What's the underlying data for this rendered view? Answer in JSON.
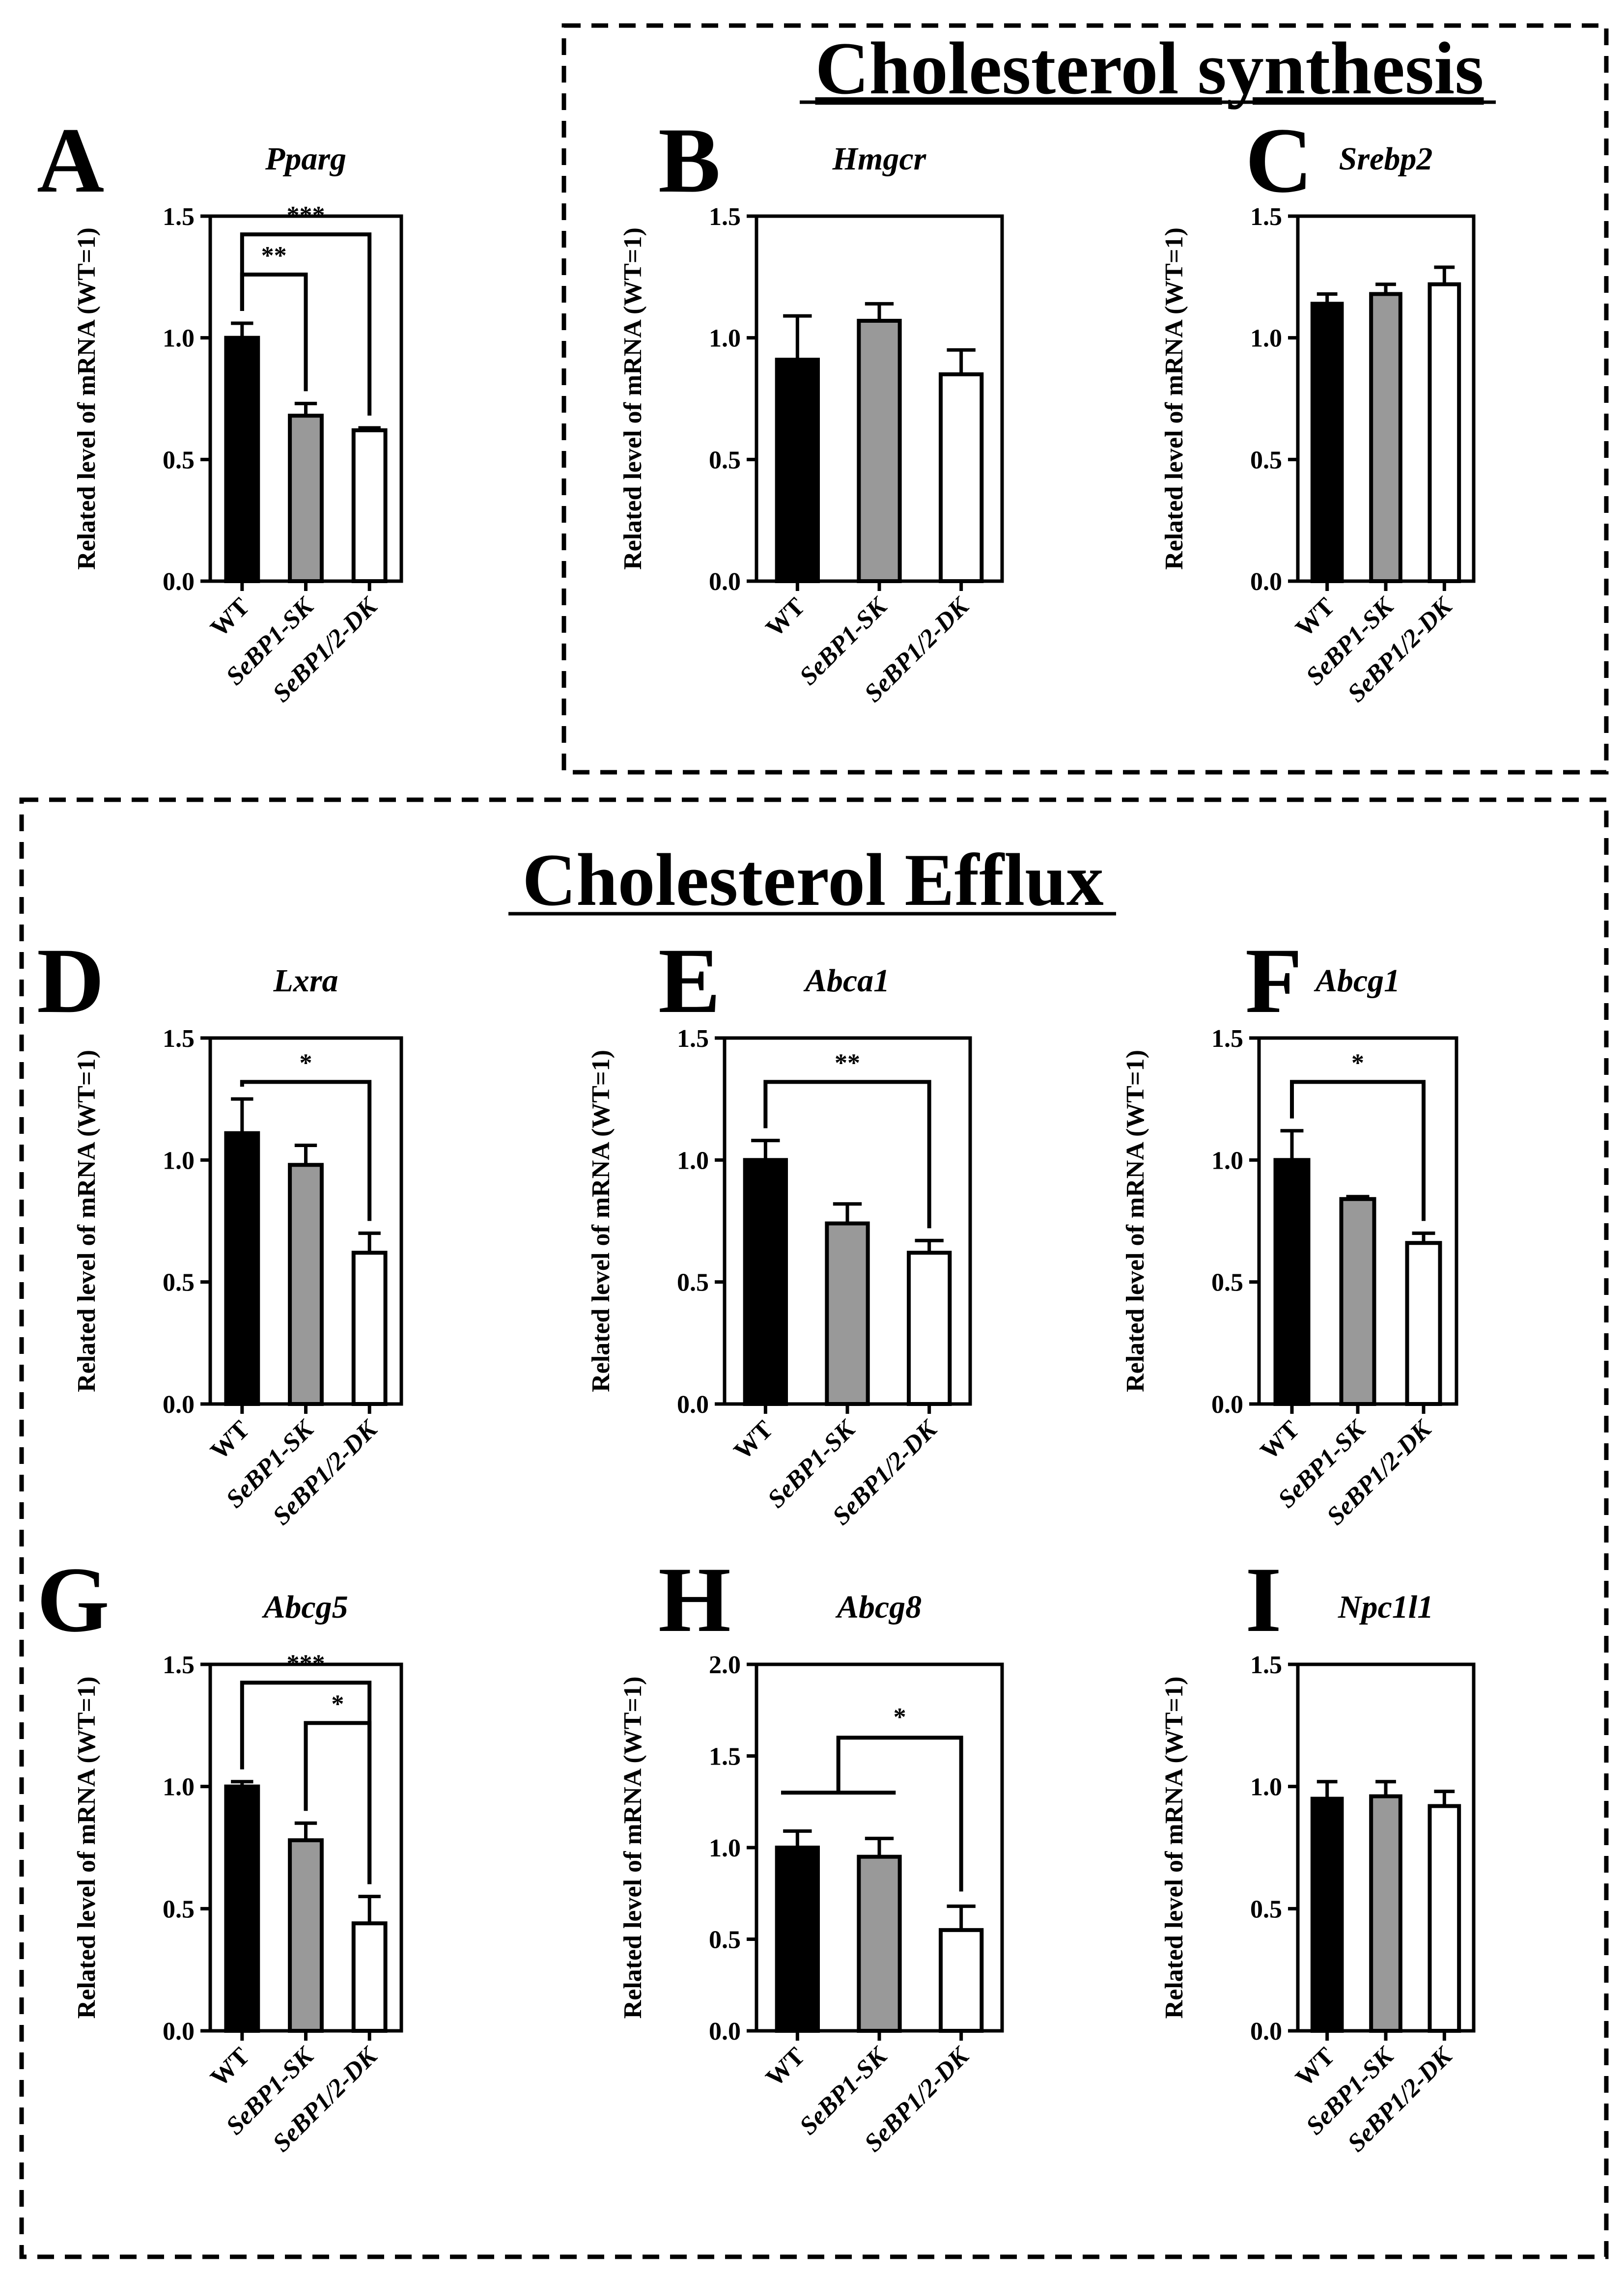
{
  "figure": {
    "sections": {
      "synthesis": {
        "title": "Cholesterol synthesis"
      },
      "efflux": {
        "title": "Cholesterol Efflux"
      }
    }
  },
  "chart_data": [
    {
      "panel": "A",
      "type": "bar",
      "title": "Pparg",
      "ylabel": "Related level of mRNA (WT=1)",
      "categories": [
        "WT",
        "SeBP1-SK",
        "SeBP1/2-DK"
      ],
      "values": [
        1.0,
        0.68,
        0.62
      ],
      "errors": [
        0.06,
        0.05,
        0.01
      ],
      "ylim": [
        0,
        1.5
      ],
      "yticks": [
        "0.0",
        "0.5",
        "1.0",
        "1.5"
      ],
      "bar_colors": [
        "#000000",
        "#999999",
        "#ffffff"
      ],
      "significance": [
        {
          "from": 0,
          "to": 1,
          "label": "**"
        },
        {
          "from": 0,
          "to": 2,
          "label": "***"
        }
      ]
    },
    {
      "panel": "B",
      "type": "bar",
      "title": "Hmgcr",
      "ylabel": "Related level of mRNA (WT=1)",
      "categories": [
        "WT",
        "SeBP1-SK",
        "SeBP1/2-DK"
      ],
      "values": [
        0.91,
        1.07,
        0.85
      ],
      "errors": [
        0.18,
        0.07,
        0.1
      ],
      "ylim": [
        0,
        1.5
      ],
      "yticks": [
        "0.0",
        "0.5",
        "1.0",
        "1.5"
      ],
      "bar_colors": [
        "#000000",
        "#999999",
        "#ffffff"
      ],
      "significance": []
    },
    {
      "panel": "C",
      "type": "bar",
      "title": "Srebp2",
      "ylabel": "Related level of mRNA (WT=1)",
      "categories": [
        "WT",
        "SeBP1-SK",
        "SeBP1/2-DK"
      ],
      "values": [
        1.14,
        1.18,
        1.22
      ],
      "errors": [
        0.04,
        0.04,
        0.07
      ],
      "ylim": [
        0,
        1.5
      ],
      "yticks": [
        "0.0",
        "0.5",
        "1.0",
        "1.5"
      ],
      "bar_colors": [
        "#000000",
        "#999999",
        "#ffffff"
      ],
      "significance": []
    },
    {
      "panel": "D",
      "type": "bar",
      "title": "Lxra",
      "ylabel": "Related level of mRNA (WT=1)",
      "categories": [
        "WT",
        "SeBP1-SK",
        "SeBP1/2-DK"
      ],
      "values": [
        1.11,
        0.98,
        0.62
      ],
      "errors": [
        0.14,
        0.08,
        0.08
      ],
      "ylim": [
        0,
        1.5
      ],
      "yticks": [
        "0.0",
        "0.5",
        "1.0",
        "1.5"
      ],
      "bar_colors": [
        "#000000",
        "#999999",
        "#ffffff"
      ],
      "significance": [
        {
          "from": 0,
          "to": 2,
          "label": "*"
        }
      ]
    },
    {
      "panel": "E",
      "type": "bar",
      "title": "Abca1",
      "ylabel": "Related level of mRNA (WT=1)",
      "categories": [
        "WT",
        "SeBP1-SK",
        "SeBP1/2-DK"
      ],
      "values": [
        1.0,
        0.74,
        0.62
      ],
      "errors": [
        0.08,
        0.08,
        0.05
      ],
      "ylim": [
        0,
        1.5
      ],
      "yticks": [
        "0.0",
        "0.5",
        "1.0",
        "1.5"
      ],
      "bar_colors": [
        "#000000",
        "#999999",
        "#ffffff"
      ],
      "significance": [
        {
          "from": 0,
          "to": 2,
          "label": "**"
        }
      ]
    },
    {
      "panel": "F",
      "type": "bar",
      "title": "Abcg1",
      "ylabel": "Related level of mRNA (WT=1)",
      "categories": [
        "WT",
        "SeBP1-SK",
        "SeBP1/2-DK"
      ],
      "values": [
        1.0,
        0.84,
        0.66
      ],
      "errors": [
        0.12,
        0.01,
        0.04
      ],
      "ylim": [
        0,
        1.5
      ],
      "yticks": [
        "0.0",
        "0.5",
        "1.0",
        "1.5"
      ],
      "bar_colors": [
        "#000000",
        "#999999",
        "#ffffff"
      ],
      "significance": [
        {
          "from": 0,
          "to": 2,
          "label": "*"
        }
      ]
    },
    {
      "panel": "G",
      "type": "bar",
      "title": "Abcg5",
      "ylabel": "Related level of mRNA (WT=1)",
      "categories": [
        "WT",
        "SeBP1-SK",
        "SeBP1/2-DK"
      ],
      "values": [
        1.0,
        0.78,
        0.44
      ],
      "errors": [
        0.02,
        0.07,
        0.11
      ],
      "ylim": [
        0,
        1.5
      ],
      "yticks": [
        "0.0",
        "0.5",
        "1.0",
        "1.5"
      ],
      "bar_colors": [
        "#000000",
        "#999999",
        "#ffffff"
      ],
      "significance": [
        {
          "from": 1,
          "to": 2,
          "label": "*"
        },
        {
          "from": 0,
          "to": 2,
          "label": "***"
        }
      ]
    },
    {
      "panel": "H",
      "type": "bar",
      "title": "Abcg8",
      "ylabel": "Related level of mRNA (WT=1)",
      "categories": [
        "WT",
        "SeBP1-SK",
        "SeBP1/2-DK"
      ],
      "values": [
        1.0,
        0.95,
        0.55
      ],
      "errors": [
        0.09,
        0.1,
        0.13
      ],
      "ylim": [
        0,
        2.0
      ],
      "yticks": [
        "0.0",
        "0.5",
        "1.0",
        "1.5",
        "2.0"
      ],
      "bar_colors": [
        "#000000",
        "#999999",
        "#ffffff"
      ],
      "significance": [
        {
          "from": 0,
          "to": 2,
          "label": "*",
          "grouped_from": [
            0,
            1
          ]
        }
      ]
    },
    {
      "panel": "I",
      "type": "bar",
      "title": "Npc1l1",
      "ylabel": "Related level of mRNA (WT=1)",
      "categories": [
        "WT",
        "SeBP1-SK",
        "SeBP1/2-DK"
      ],
      "values": [
        0.95,
        0.96,
        0.92
      ],
      "errors": [
        0.07,
        0.06,
        0.06
      ],
      "ylim": [
        0,
        1.5
      ],
      "yticks": [
        "0.0",
        "0.5",
        "1.0",
        "1.5"
      ],
      "bar_colors": [
        "#000000",
        "#999999",
        "#ffffff"
      ],
      "significance": []
    }
  ]
}
